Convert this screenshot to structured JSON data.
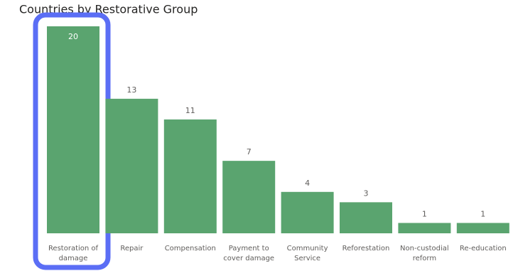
{
  "chart_data": {
    "type": "bar",
    "title": "Countries by Restorative Group",
    "categories": [
      "Restoration of damage",
      "Repair",
      "Compensation",
      "Payment to cover damage",
      "Community Service",
      "Reforestation",
      "Non-custodial reform",
      "Re-education"
    ],
    "values": [
      20,
      13,
      11,
      7,
      4,
      3,
      1,
      1
    ],
    "color": "#5aa46f"
  }
}
